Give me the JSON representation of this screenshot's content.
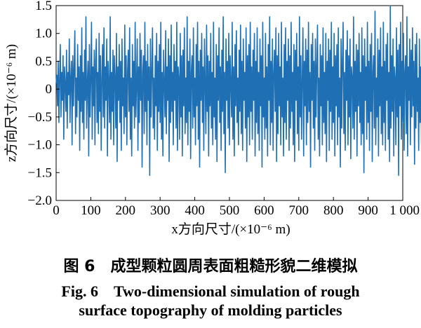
{
  "chart_data": {
    "type": "line",
    "title": "",
    "xlabel": "x方向尺寸/(×10⁻⁶ m)",
    "ylabel": "z方向尺寸/(×10⁻⁶ m)",
    "xlim": [
      0,
      1000
    ],
    "ylim": [
      -2.0,
      1.5
    ],
    "x_ticks": [
      0,
      100,
      200,
      300,
      400,
      500,
      600,
      700,
      800,
      900,
      1000
    ],
    "x_tick_labels": [
      "0",
      "100",
      "200",
      "300",
      "400",
      "500",
      "600",
      "700",
      "800",
      "900",
      "1 000"
    ],
    "y_ticks": [
      -2.0,
      -1.5,
      -1.0,
      -0.5,
      0,
      0.5,
      1.0,
      1.5
    ],
    "y_tick_labels": [
      "−2.0",
      "−1.5",
      "−1.0",
      "−0.5",
      "0",
      "0.5",
      "1.0",
      "1.5"
    ],
    "grid": false,
    "legend": "none",
    "line_color": "#1f6fb4",
    "series": [
      {
        "x_start": 0,
        "x_step": 2,
        "values": [
          0.1,
          0.25,
          -0.3,
          0.5,
          -0.6,
          0.2,
          0.8,
          -0.5,
          0.3,
          -0.2,
          0.6,
          -0.9,
          0.4,
          0.1,
          -0.4,
          0.7,
          -0.7,
          0.3,
          -0.1,
          0.9,
          -0.6,
          0.2,
          0.5,
          -1.0,
          0.6,
          -0.3,
          0.4,
          1.05,
          -0.8,
          0.2,
          -0.5,
          0.8,
          -0.2,
          0.4,
          -1.1,
          0.6,
          -0.4,
          1.1,
          -0.6,
          0.3,
          -0.9,
          0.7,
          -0.2,
          1.3,
          -0.7,
          0.1,
          0.5,
          -1.2,
          0.8,
          -0.5,
          0.2,
          1.2,
          -0.9,
          0.4,
          -0.3,
          0.7,
          -1.0,
          0.5,
          0.9,
          -0.6,
          0.3,
          -0.8,
          1.0,
          -0.4,
          0.6,
          -1.1,
          0.2,
          0.8,
          -0.5,
          1.1,
          -0.7,
          0.4,
          -0.2,
          0.9,
          -1.2,
          0.5,
          0.1,
          -0.6,
          1.3,
          -0.9,
          0.3,
          -0.4,
          0.7,
          -1.0,
          0.6,
          0.2,
          -0.7,
          1.0,
          -1.3,
          0.4,
          -0.2,
          0.8,
          -0.6,
          0.5,
          -1.1,
          0.9,
          -0.3,
          0.2,
          -0.8,
          1.15,
          -0.5,
          0.6,
          -1.0,
          0.3,
          0.7,
          -0.4,
          1.1,
          -0.9,
          0.2,
          -1.2,
          0.8,
          -0.3,
          0.5,
          -0.7,
          1.2,
          -0.5,
          0.1,
          0.9,
          -1.1,
          0.4,
          -0.6,
          1.0,
          -0.2,
          0.7,
          -1.4,
          0.3,
          0.6,
          -0.8,
          1.2,
          -0.4,
          0.5,
          -1.0,
          0.8,
          -0.2,
          0.4,
          -1.55,
          0.9,
          -0.5,
          0.3,
          1.1,
          -0.7,
          0.2,
          -0.9,
          0.6,
          -0.3,
          1.0,
          -1.1,
          0.5,
          -0.4,
          0.8,
          -0.6,
          1.2,
          -0.9,
          0.3,
          -1.2,
          0.7,
          0.1,
          -0.5,
          1.05,
          -0.8,
          0.4,
          -0.2,
          0.9,
          -1.3,
          0.6,
          -0.6,
          1.15,
          -0.4,
          0.3,
          -1.0,
          0.8,
          -0.2,
          0.5,
          -0.7,
          1.2,
          -1.1,
          0.4,
          0.2,
          -0.9,
          1.0,
          -0.5,
          0.6,
          -1.2,
          0.7,
          -0.3,
          1.1,
          -0.8,
          0.2,
          -0.6,
          1.3,
          -1.0,
          0.5,
          -0.4,
          0.9,
          -1.25,
          0.3,
          0.6,
          -0.7,
          1.1,
          -0.5,
          0.2,
          -1.0,
          0.8,
          -0.3,
          1.2,
          -0.9,
          0.5,
          -1.4,
          0.7,
          -0.2,
          1.0,
          -0.6,
          0.4,
          -1.1,
          0.9,
          0.1,
          -0.8,
          1.15,
          -0.4,
          0.6,
          -1.2,
          0.5,
          -0.3,
          1.0,
          -0.7,
          0.3,
          -1.0,
          1.2,
          -0.5,
          0.2,
          -0.9,
          0.8,
          -1.3,
          0.6,
          -0.2,
          1.1,
          -0.6,
          0.4,
          -1.1,
          0.7,
          -0.4,
          1.3,
          -0.8,
          0.3,
          -1.5,
          0.9,
          -0.2,
          0.5,
          -0.7,
          1.0,
          -1.0,
          0.6,
          0.1,
          -0.5,
          1.2,
          -0.9,
          0.4,
          -1.2,
          0.8,
          -0.3,
          1.05,
          -0.6,
          0.2,
          -1.0,
          0.7,
          -0.4,
          1.15,
          -0.8,
          0.5,
          -1.1,
          0.9,
          -0.2,
          0.3,
          -0.7,
          1.1,
          -1.3,
          0.6,
          -0.5,
          0.8,
          -1.0,
          1.2,
          -0.4,
          0.4,
          -0.9,
          0.7,
          -0.2,
          1.0,
          -1.2,
          0.5,
          -0.6,
          1.1,
          -0.8,
          0.3,
          -1.1,
          0.9,
          -0.3,
          0.6,
          -1.4,
          1.2,
          -0.5,
          0.2,
          -0.9,
          1.0,
          -0.7,
          0.4,
          -1.2,
          0.8,
          -0.2,
          1.3,
          -1.0,
          0.5,
          -0.6,
          0.9,
          -1.1,
          0.3,
          0.7,
          -0.4,
          1.1,
          -1.3,
          0.6,
          -0.8,
          1.0,
          -0.3,
          0.4,
          -1.0,
          1.2,
          -0.5,
          0.2,
          -1.2,
          0.8,
          -0.6,
          1.1,
          -0.9,
          0.5,
          -0.2,
          0.9,
          -1.1,
          0.6,
          -0.7,
          1.2,
          -0.4,
          0.3,
          -1.0,
          0.8,
          -1.3,
          0.7,
          -0.2,
          1.0,
          -0.8,
          0.4,
          -1.1,
          1.3,
          -0.5,
          0.6,
          -0.9,
          0.2,
          1.1,
          -1.2,
          0.5,
          -0.3,
          0.9,
          -1.0,
          0.7,
          -0.6,
          1.2,
          -0.4,
          0.3,
          -1.4,
          0.8,
          -0.2,
          1.0,
          -0.7,
          0.5,
          -1.1,
          0.9,
          -0.5,
          0.4,
          1.15,
          -0.9,
          0.2,
          -1.2,
          0.8,
          -0.3,
          0.6,
          -1.0,
          1.1,
          -0.6,
          0.3,
          -0.8,
          1.0,
          -1.3,
          0.5,
          -0.2,
          0.9,
          -1.1,
          0.7,
          -0.4,
          1.2,
          -0.9,
          0.4,
          -0.6,
          1.0,
          -1.2,
          0.6,
          -0.3,
          0.8,
          -1.0,
          1.1,
          -0.5,
          0.2,
          -1.4,
          0.9,
          -0.7,
          0.5,
          1.2,
          -0.8,
          0.3,
          -1.1,
          0.7,
          -0.2,
          1.05,
          -1.0,
          0.6,
          -0.5,
          0.9,
          -1.25,
          0.4,
          0.2,
          -0.7,
          1.3,
          -0.9,
          0.5,
          -0.4,
          0.8,
          -1.2,
          0.7,
          -0.3,
          1.0,
          -0.6,
          0.3,
          -1.0,
          1.1,
          -0.8,
          0.6,
          -1.5,
          0.9,
          -0.2,
          0.4,
          -0.9,
          1.2,
          -0.6,
          0.5,
          -1.1,
          0.8,
          -0.4,
          1.0,
          -1.3,
          0.3,
          0.6,
          -0.7,
          1.4,
          -1.0,
          0.2,
          -0.5,
          0.9,
          -1.2,
          0.7,
          -0.3,
          1.1,
          -0.8,
          0.4,
          -1.0,
          1.2,
          -0.6,
          0.5,
          -1.1,
          0.8,
          -0.2,
          1.0,
          -0.9,
          0.3,
          -1.3,
          1.5,
          -0.7,
          0.6,
          -0.4,
          0.9,
          -1.2,
          0.4,
          0.2,
          -1.0,
          1.1,
          -0.5,
          0.7,
          -1.55,
          0.8,
          -0.3,
          1.2,
          -0.9,
          0.5,
          -0.6,
          1.0,
          -1.1,
          0.3,
          0.6,
          -0.8,
          1.3,
          -1.2,
          0.4,
          -0.2,
          0.9,
          -1.0,
          0.7,
          -0.5,
          1.1,
          -0.3,
          0.5,
          -1.35,
          0.8,
          -0.7,
          1.0,
          -0.4,
          0.2,
          -1.1,
          0.9,
          -0.6,
          0.4,
          -1.0,
          1.2,
          -0.2,
          0.6,
          -0.9,
          1.35
        ]
      }
    ]
  },
  "caption": {
    "cn": "图 6　成型颗粒圆周表面粗糙形貌二维模拟",
    "en_line1": "Fig. 6　Two-dimensional simulation of rough",
    "en_line2": "surface topography of molding particles"
  }
}
